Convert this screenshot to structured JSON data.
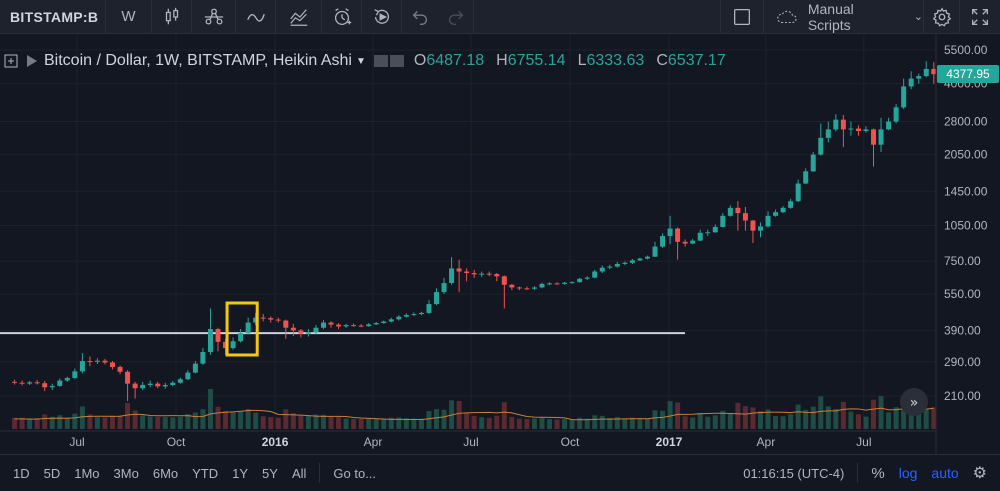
{
  "toolbar": {
    "symbol": "BITSTAMP:B",
    "interval": "W",
    "scripts_label": "Manual Scripts",
    "icons": [
      "bar-chart-icon",
      "compare-icon",
      "indicator-icon",
      "financials-icon",
      "alert-icon",
      "replay-icon",
      "undo-icon",
      "redo-icon",
      "layout-icon",
      "cloud-icon",
      "settings-icon",
      "fullscreen-icon"
    ]
  },
  "legend": {
    "title": "Bitcoin / Dollar, 1W, BITSTAMP, Heikin Ashi",
    "o_label": "O",
    "o": "6487.18",
    "h_label": "H",
    "h": "6755.14",
    "l_label": "L",
    "l": "6333.63",
    "c_label": "C",
    "c": "6537.17"
  },
  "last_price": "4377.95",
  "bottom": {
    "ranges": [
      "1D",
      "5D",
      "1Mo",
      "3Mo",
      "6Mo",
      "YTD",
      "1Y",
      "5Y",
      "All"
    ],
    "goto": "Go to...",
    "time": "01:16:15 (UTC-4)",
    "pct": "%",
    "log": "log",
    "auto": "auto"
  },
  "colors": {
    "up": "#26a69a",
    "down": "#ef5350",
    "bg": "#131722",
    "highlight": "#f5c518",
    "support": "#d1d4dc",
    "ma": "#c87f3a"
  },
  "chart_data": {
    "type": "candlestick",
    "scale": "log",
    "y_ticks": [
      "5500.00",
      "4000.00",
      "2800.00",
      "2050.00",
      "1450.00",
      "1050.00",
      "750.00",
      "550.00",
      "390.00",
      "290.00",
      "210.00"
    ],
    "x_ticks": [
      "Jul",
      "Oct",
      "2016",
      "Apr",
      "Jul",
      "Oct",
      "2017",
      "Apr",
      "Jul"
    ],
    "support_level": 380,
    "highlight_range": [
      "2015-11-23",
      "2015-12-21"
    ],
    "series": [
      {
        "t": "2015-05-04",
        "o": 240,
        "h": 245,
        "l": 234,
        "c": 238
      },
      {
        "t": "2015-05-11",
        "o": 238,
        "h": 243,
        "l": 232,
        "c": 236
      },
      {
        "t": "2015-05-18",
        "o": 236,
        "h": 242,
        "l": 233,
        "c": 239
      },
      {
        "t": "2015-05-25",
        "o": 239,
        "h": 244,
        "l": 234,
        "c": 237
      },
      {
        "t": "2015-06-01",
        "o": 237,
        "h": 242,
        "l": 220,
        "c": 228
      },
      {
        "t": "2015-06-08",
        "o": 228,
        "h": 236,
        "l": 222,
        "c": 231
      },
      {
        "t": "2015-06-15",
        "o": 231,
        "h": 248,
        "l": 229,
        "c": 243
      },
      {
        "t": "2015-06-22",
        "o": 243,
        "h": 252,
        "l": 240,
        "c": 249
      },
      {
        "t": "2015-06-29",
        "o": 249,
        "h": 272,
        "l": 246,
        "c": 265
      },
      {
        "t": "2015-07-06",
        "o": 265,
        "h": 315,
        "l": 260,
        "c": 292
      },
      {
        "t": "2015-07-13",
        "o": 292,
        "h": 305,
        "l": 278,
        "c": 290
      },
      {
        "t": "2015-07-20",
        "o": 290,
        "h": 300,
        "l": 284,
        "c": 293
      },
      {
        "t": "2015-07-27",
        "o": 293,
        "h": 298,
        "l": 283,
        "c": 288
      },
      {
        "t": "2015-08-03",
        "o": 288,
        "h": 292,
        "l": 270,
        "c": 276
      },
      {
        "t": "2015-08-10",
        "o": 276,
        "h": 280,
        "l": 258,
        "c": 264
      },
      {
        "t": "2015-08-17",
        "o": 264,
        "h": 268,
        "l": 200,
        "c": 236
      },
      {
        "t": "2015-08-24",
        "o": 236,
        "h": 240,
        "l": 205,
        "c": 226
      },
      {
        "t": "2015-08-31",
        "o": 226,
        "h": 240,
        "l": 222,
        "c": 233
      },
      {
        "t": "2015-09-07",
        "o": 233,
        "h": 243,
        "l": 228,
        "c": 236
      },
      {
        "t": "2015-09-14",
        "o": 236,
        "h": 240,
        "l": 226,
        "c": 230
      },
      {
        "t": "2015-09-21",
        "o": 230,
        "h": 238,
        "l": 225,
        "c": 233
      },
      {
        "t": "2015-09-28",
        "o": 233,
        "h": 242,
        "l": 230,
        "c": 238
      },
      {
        "t": "2015-10-05",
        "o": 238,
        "h": 250,
        "l": 236,
        "c": 246
      },
      {
        "t": "2015-10-12",
        "o": 246,
        "h": 268,
        "l": 244,
        "c": 262
      },
      {
        "t": "2015-10-19",
        "o": 262,
        "h": 292,
        "l": 260,
        "c": 285
      },
      {
        "t": "2015-10-26",
        "o": 285,
        "h": 330,
        "l": 282,
        "c": 318
      },
      {
        "t": "2015-11-02",
        "o": 318,
        "h": 480,
        "l": 310,
        "c": 395
      },
      {
        "t": "2015-11-09",
        "o": 395,
        "h": 400,
        "l": 320,
        "c": 350
      },
      {
        "t": "2015-11-16",
        "o": 350,
        "h": 360,
        "l": 310,
        "c": 330
      },
      {
        "t": "2015-11-23",
        "o": 330,
        "h": 365,
        "l": 325,
        "c": 352
      },
      {
        "t": "2015-11-30",
        "o": 352,
        "h": 395,
        "l": 348,
        "c": 380
      },
      {
        "t": "2015-12-07",
        "o": 380,
        "h": 440,
        "l": 375,
        "c": 420
      },
      {
        "t": "2015-12-14",
        "o": 420,
        "h": 460,
        "l": 410,
        "c": 440
      },
      {
        "t": "2015-12-21",
        "o": 440,
        "h": 455,
        "l": 425,
        "c": 438
      },
      {
        "t": "2015-12-28",
        "o": 438,
        "h": 445,
        "l": 420,
        "c": 432
      },
      {
        "t": "2016-01-04",
        "o": 432,
        "h": 440,
        "l": 420,
        "c": 428
      },
      {
        "t": "2016-01-11",
        "o": 428,
        "h": 432,
        "l": 360,
        "c": 400
      },
      {
        "t": "2016-01-18",
        "o": 400,
        "h": 415,
        "l": 370,
        "c": 390
      },
      {
        "t": "2016-01-25",
        "o": 390,
        "h": 395,
        "l": 365,
        "c": 378
      },
      {
        "t": "2016-02-01",
        "o": 378,
        "h": 395,
        "l": 368,
        "c": 383
      },
      {
        "t": "2016-02-08",
        "o": 383,
        "h": 410,
        "l": 375,
        "c": 400
      },
      {
        "t": "2016-02-15",
        "o": 400,
        "h": 430,
        "l": 395,
        "c": 420
      },
      {
        "t": "2016-02-22",
        "o": 420,
        "h": 425,
        "l": 400,
        "c": 412
      },
      {
        "t": "2016-02-29",
        "o": 412,
        "h": 418,
        "l": 395,
        "c": 405
      },
      {
        "t": "2016-03-07",
        "o": 405,
        "h": 415,
        "l": 400,
        "c": 410
      },
      {
        "t": "2016-03-14",
        "o": 410,
        "h": 416,
        "l": 404,
        "c": 408
      },
      {
        "t": "2016-03-21",
        "o": 408,
        "h": 414,
        "l": 402,
        "c": 406
      },
      {
        "t": "2016-03-28",
        "o": 406,
        "h": 418,
        "l": 404,
        "c": 413
      },
      {
        "t": "2016-04-04",
        "o": 413,
        "h": 422,
        "l": 410,
        "c": 418
      },
      {
        "t": "2016-04-11",
        "o": 418,
        "h": 428,
        "l": 415,
        "c": 424
      },
      {
        "t": "2016-04-18",
        "o": 424,
        "h": 440,
        "l": 420,
        "c": 433
      },
      {
        "t": "2016-04-25",
        "o": 433,
        "h": 450,
        "l": 428,
        "c": 444
      },
      {
        "t": "2016-05-02",
        "o": 444,
        "h": 458,
        "l": 440,
        "c": 451
      },
      {
        "t": "2016-05-09",
        "o": 451,
        "h": 462,
        "l": 446,
        "c": 455
      },
      {
        "t": "2016-05-16",
        "o": 455,
        "h": 465,
        "l": 450,
        "c": 460
      },
      {
        "t": "2016-05-23",
        "o": 460,
        "h": 520,
        "l": 455,
        "c": 500
      },
      {
        "t": "2016-05-30",
        "o": 500,
        "h": 580,
        "l": 495,
        "c": 560
      },
      {
        "t": "2016-06-06",
        "o": 560,
        "h": 640,
        "l": 550,
        "c": 610
      },
      {
        "t": "2016-06-13",
        "o": 610,
        "h": 780,
        "l": 600,
        "c": 700
      },
      {
        "t": "2016-06-20",
        "o": 700,
        "h": 760,
        "l": 560,
        "c": 680
      },
      {
        "t": "2016-06-27",
        "o": 680,
        "h": 700,
        "l": 620,
        "c": 670
      },
      {
        "t": "2016-07-04",
        "o": 670,
        "h": 690,
        "l": 640,
        "c": 662
      },
      {
        "t": "2016-07-11",
        "o": 662,
        "h": 680,
        "l": 645,
        "c": 666
      },
      {
        "t": "2016-07-18",
        "o": 666,
        "h": 680,
        "l": 650,
        "c": 664
      },
      {
        "t": "2016-07-25",
        "o": 664,
        "h": 670,
        "l": 620,
        "c": 650
      },
      {
        "t": "2016-08-01",
        "o": 650,
        "h": 655,
        "l": 480,
        "c": 600
      },
      {
        "t": "2016-08-08",
        "o": 600,
        "h": 605,
        "l": 570,
        "c": 585
      },
      {
        "t": "2016-08-15",
        "o": 585,
        "h": 590,
        "l": 570,
        "c": 580
      },
      {
        "t": "2016-08-22",
        "o": 580,
        "h": 590,
        "l": 572,
        "c": 578
      },
      {
        "t": "2016-08-29",
        "o": 578,
        "h": 592,
        "l": 572,
        "c": 585
      },
      {
        "t": "2016-09-05",
        "o": 585,
        "h": 612,
        "l": 580,
        "c": 605
      },
      {
        "t": "2016-09-12",
        "o": 605,
        "h": 614,
        "l": 598,
        "c": 608
      },
      {
        "t": "2016-09-19",
        "o": 608,
        "h": 614,
        "l": 600,
        "c": 605
      },
      {
        "t": "2016-09-26",
        "o": 605,
        "h": 616,
        "l": 600,
        "c": 612
      },
      {
        "t": "2016-10-03",
        "o": 612,
        "h": 620,
        "l": 606,
        "c": 615
      },
      {
        "t": "2016-10-10",
        "o": 615,
        "h": 640,
        "l": 612,
        "c": 635
      },
      {
        "t": "2016-10-17",
        "o": 635,
        "h": 650,
        "l": 628,
        "c": 642
      },
      {
        "t": "2016-10-24",
        "o": 642,
        "h": 690,
        "l": 638,
        "c": 680
      },
      {
        "t": "2016-10-31",
        "o": 680,
        "h": 720,
        "l": 670,
        "c": 705
      },
      {
        "t": "2016-11-07",
        "o": 705,
        "h": 725,
        "l": 695,
        "c": 712
      },
      {
        "t": "2016-11-14",
        "o": 712,
        "h": 745,
        "l": 705,
        "c": 730
      },
      {
        "t": "2016-11-21",
        "o": 730,
        "h": 748,
        "l": 722,
        "c": 738
      },
      {
        "t": "2016-11-28",
        "o": 738,
        "h": 765,
        "l": 730,
        "c": 755
      },
      {
        "t": "2016-12-05",
        "o": 755,
        "h": 775,
        "l": 750,
        "c": 768
      },
      {
        "t": "2016-12-12",
        "o": 768,
        "h": 790,
        "l": 762,
        "c": 782
      },
      {
        "t": "2016-12-19",
        "o": 782,
        "h": 900,
        "l": 780,
        "c": 860
      },
      {
        "t": "2016-12-26",
        "o": 860,
        "h": 975,
        "l": 850,
        "c": 950
      },
      {
        "t": "2017-01-02",
        "o": 950,
        "h": 1150,
        "l": 880,
        "c": 1020
      },
      {
        "t": "2017-01-09",
        "o": 1020,
        "h": 1030,
        "l": 760,
        "c": 900
      },
      {
        "t": "2017-01-16",
        "o": 900,
        "h": 920,
        "l": 860,
        "c": 885
      },
      {
        "t": "2017-01-23",
        "o": 885,
        "h": 925,
        "l": 880,
        "c": 910
      },
      {
        "t": "2017-01-30",
        "o": 910,
        "h": 1010,
        "l": 905,
        "c": 980
      },
      {
        "t": "2017-02-06",
        "o": 980,
        "h": 1010,
        "l": 950,
        "c": 985
      },
      {
        "t": "2017-02-13",
        "o": 985,
        "h": 1060,
        "l": 980,
        "c": 1035
      },
      {
        "t": "2017-02-20",
        "o": 1035,
        "h": 1180,
        "l": 1030,
        "c": 1150
      },
      {
        "t": "2017-02-27",
        "o": 1150,
        "h": 1270,
        "l": 1140,
        "c": 1240
      },
      {
        "t": "2017-03-06",
        "o": 1240,
        "h": 1320,
        "l": 1000,
        "c": 1180
      },
      {
        "t": "2017-03-13",
        "o": 1180,
        "h": 1250,
        "l": 1000,
        "c": 1100
      },
      {
        "t": "2017-03-20",
        "o": 1100,
        "h": 1105,
        "l": 890,
        "c": 1000
      },
      {
        "t": "2017-03-27",
        "o": 1000,
        "h": 1080,
        "l": 940,
        "c": 1040
      },
      {
        "t": "2017-04-03",
        "o": 1040,
        "h": 1200,
        "l": 1030,
        "c": 1150
      },
      {
        "t": "2017-04-10",
        "o": 1150,
        "h": 1220,
        "l": 1140,
        "c": 1190
      },
      {
        "t": "2017-04-17",
        "o": 1190,
        "h": 1260,
        "l": 1180,
        "c": 1240
      },
      {
        "t": "2017-04-24",
        "o": 1240,
        "h": 1350,
        "l": 1230,
        "c": 1320
      },
      {
        "t": "2017-05-01",
        "o": 1320,
        "h": 1620,
        "l": 1310,
        "c": 1560
      },
      {
        "t": "2017-05-08",
        "o": 1560,
        "h": 1800,
        "l": 1550,
        "c": 1750
      },
      {
        "t": "2017-05-15",
        "o": 1750,
        "h": 2100,
        "l": 1740,
        "c": 2050
      },
      {
        "t": "2017-05-22",
        "o": 2050,
        "h": 2750,
        "l": 2030,
        "c": 2400
      },
      {
        "t": "2017-05-29",
        "o": 2400,
        "h": 2800,
        "l": 2300,
        "c": 2600
      },
      {
        "t": "2017-06-05",
        "o": 2600,
        "h": 3000,
        "l": 2550,
        "c": 2850
      },
      {
        "t": "2017-06-12",
        "o": 2850,
        "h": 2980,
        "l": 2200,
        "c": 2600
      },
      {
        "t": "2017-06-19",
        "o": 2600,
        "h": 2800,
        "l": 2450,
        "c": 2620
      },
      {
        "t": "2017-06-26",
        "o": 2620,
        "h": 2700,
        "l": 2450,
        "c": 2560
      },
      {
        "t": "2017-07-03",
        "o": 2560,
        "h": 2680,
        "l": 2520,
        "c": 2600
      },
      {
        "t": "2017-07-10",
        "o": 2600,
        "h": 2620,
        "l": 1830,
        "c": 2250
      },
      {
        "t": "2017-07-17",
        "o": 2250,
        "h": 2900,
        "l": 2100,
        "c": 2600
      },
      {
        "t": "2017-07-24",
        "o": 2600,
        "h": 2900,
        "l": 2580,
        "c": 2800
      },
      {
        "t": "2017-07-31",
        "o": 2800,
        "h": 3300,
        "l": 2750,
        "c": 3200
      },
      {
        "t": "2017-08-07",
        "o": 3200,
        "h": 4200,
        "l": 3150,
        "c": 3900
      },
      {
        "t": "2017-08-14",
        "o": 3900,
        "h": 4500,
        "l": 3800,
        "c": 4200
      },
      {
        "t": "2017-08-21",
        "o": 4200,
        "h": 4400,
        "l": 4000,
        "c": 4300
      },
      {
        "t": "2017-08-28",
        "o": 4300,
        "h": 4950,
        "l": 4250,
        "c": 4600
      },
      {
        "t": "2017-09-04",
        "o": 4600,
        "h": 4900,
        "l": 4000,
        "c": 4377.95
      }
    ]
  }
}
